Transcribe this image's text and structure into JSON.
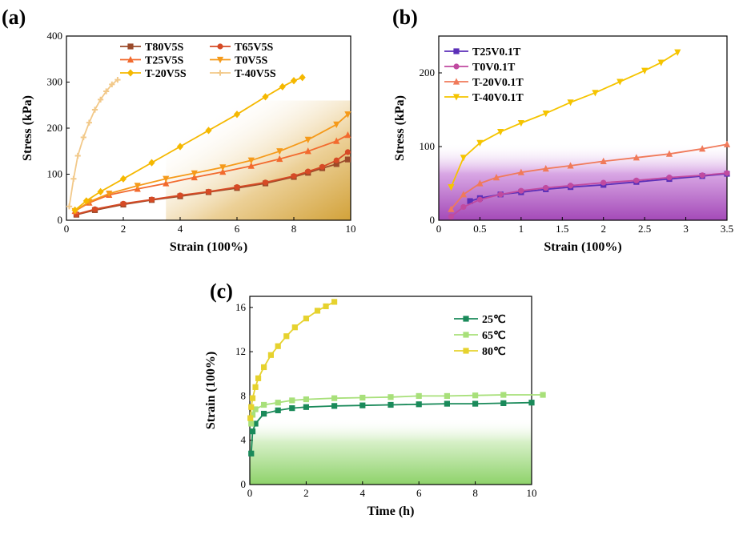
{
  "chart_data": [
    {
      "type": "line",
      "panel_label": "(a)",
      "xlabel": "Strain (100%)",
      "ylabel": "Stress (kPa)",
      "xlim": [
        0,
        10
      ],
      "ylim": [
        0,
        400
      ],
      "xticks": [
        0,
        2,
        4,
        6,
        8,
        10
      ],
      "yticks": [
        0,
        100,
        200,
        300,
        400
      ],
      "xtick_labels": [
        "0",
        "2",
        "4",
        "6",
        "8",
        "10"
      ],
      "ytick_labels": [
        "0",
        "100",
        "200",
        "300",
        "400"
      ],
      "legend_position": "top",
      "series": [
        {
          "name": "T80V5S",
          "color": "#9b4a2a",
          "marker": "square",
          "x": [
            0.35,
            1,
            2,
            3,
            4,
            5,
            6,
            7,
            8,
            8.5,
            9,
            9.5,
            9.9
          ],
          "y": [
            12,
            22,
            34,
            44,
            52,
            61,
            70,
            80,
            94,
            103,
            113,
            122,
            132
          ]
        },
        {
          "name": "T65V5S",
          "color": "#d64a25",
          "marker": "circle",
          "x": [
            0.35,
            1,
            2,
            3,
            4,
            5,
            6,
            7,
            8,
            8.5,
            9,
            9.5,
            9.9
          ],
          "y": [
            13,
            24,
            36,
            45,
            54,
            62,
            72,
            82,
            96,
            106,
            116,
            130,
            148
          ]
        },
        {
          "name": "T25V5S",
          "color": "#f26a2e",
          "marker": "triangle-up",
          "x": [
            0.3,
            0.8,
            1.5,
            2.5,
            3.5,
            4.5,
            5.5,
            6.5,
            7.5,
            8.5,
            9.5,
            9.9
          ],
          "y": [
            20,
            38,
            55,
            68,
            80,
            93,
            105,
            118,
            133,
            150,
            172,
            185
          ]
        },
        {
          "name": "T0V5S",
          "color": "#f59a1a",
          "marker": "triangle-down",
          "x": [
            0.3,
            0.8,
            1.5,
            2.5,
            3.5,
            4.5,
            5.5,
            6.5,
            7.5,
            8.5,
            9.5,
            9.9
          ],
          "y": [
            20,
            40,
            58,
            75,
            90,
            102,
            115,
            130,
            150,
            175,
            208,
            230
          ]
        },
        {
          "name": "T-20V5S",
          "color": "#f5b800",
          "marker": "diamond",
          "x": [
            0.3,
            0.7,
            1.2,
            2,
            3,
            4,
            5,
            6,
            7,
            7.6,
            8,
            8.3
          ],
          "y": [
            22,
            42,
            62,
            90,
            125,
            160,
            195,
            230,
            268,
            290,
            303,
            310
          ]
        },
        {
          "name": "T-40V5S",
          "color": "#f2c98a",
          "marker": "cross",
          "x": [
            0.1,
            0.25,
            0.4,
            0.6,
            0.8,
            1.0,
            1.2,
            1.4,
            1.6,
            1.8
          ],
          "y": [
            30,
            90,
            140,
            180,
            212,
            240,
            262,
            280,
            295,
            305
          ]
        }
      ]
    },
    {
      "type": "line",
      "panel_label": "(b)",
      "xlabel": "Strain (100%)",
      "ylabel": "Stress (kPa)",
      "xlim": [
        0,
        3.5
      ],
      "ylim": [
        0,
        250
      ],
      "xticks": [
        0,
        0.5,
        1,
        1.5,
        2,
        2.5,
        3,
        3.5
      ],
      "yticks": [
        0,
        100,
        200
      ],
      "xtick_labels": [
        "0",
        "0.5",
        "1",
        "1.5",
        "2",
        "2.5",
        "3",
        "3.5"
      ],
      "ytick_labels": [
        "0",
        "100",
        "200"
      ],
      "legend_position": "top-left",
      "series": [
        {
          "name": "T25V0.1T",
          "color": "#5b2fb8",
          "marker": "square",
          "x": [
            0.38,
            0.5,
            0.75,
            1.0,
            1.3,
            1.6,
            2.0,
            2.4,
            2.8,
            3.2,
            3.5
          ],
          "y": [
            26,
            30,
            35,
            38,
            42,
            45,
            48,
            52,
            56,
            60,
            63
          ]
        },
        {
          "name": "T0V0.1T",
          "color": "#c04aa0",
          "marker": "circle",
          "x": [
            0.15,
            0.3,
            0.5,
            0.75,
            1.0,
            1.3,
            1.6,
            2.0,
            2.4,
            2.8,
            3.2,
            3.5
          ],
          "y": [
            5,
            18,
            28,
            35,
            40,
            44,
            47,
            51,
            54,
            58,
            61,
            64
          ]
        },
        {
          "name": "T-20V0.1T",
          "color": "#f07a5a",
          "marker": "triangle-up",
          "x": [
            0.15,
            0.3,
            0.5,
            0.7,
            1.0,
            1.3,
            1.6,
            2.0,
            2.4,
            2.8,
            3.2,
            3.5
          ],
          "y": [
            15,
            35,
            50,
            58,
            65,
            70,
            74,
            80,
            85,
            90,
            97,
            103
          ]
        },
        {
          "name": "T-40V0.1T",
          "color": "#f5c400",
          "marker": "triangle-down",
          "x": [
            0.15,
            0.3,
            0.5,
            0.75,
            1.0,
            1.3,
            1.6,
            1.9,
            2.2,
            2.5,
            2.7,
            2.9
          ],
          "y": [
            45,
            85,
            105,
            120,
            132,
            145,
            160,
            173,
            188,
            203,
            214,
            228
          ]
        }
      ]
    },
    {
      "type": "line",
      "panel_label": "(c)",
      "xlabel": "Time (h)",
      "ylabel": "Strain (100%)",
      "xlim": [
        0,
        10
      ],
      "ylim": [
        0,
        17
      ],
      "xticks": [
        0,
        2,
        4,
        6,
        8,
        10
      ],
      "yticks": [
        0,
        4,
        8,
        12,
        16
      ],
      "xtick_labels": [
        "0",
        "2",
        "4",
        "6",
        "8",
        "10"
      ],
      "ytick_labels": [
        "0",
        "4",
        "8",
        "12",
        "16"
      ],
      "legend_position": "top-right",
      "series": [
        {
          "name": "25℃",
          "color": "#1a8a5a",
          "marker": "square",
          "x": [
            0.05,
            0.1,
            0.2,
            0.5,
            1,
            1.5,
            2,
            3,
            4,
            5,
            6,
            7,
            8,
            9,
            10
          ],
          "y": [
            2.8,
            4.8,
            5.5,
            6.4,
            6.7,
            6.9,
            7.0,
            7.1,
            7.15,
            7.2,
            7.25,
            7.3,
            7.3,
            7.35,
            7.4
          ]
        },
        {
          "name": "65℃",
          "color": "#a8e07a",
          "marker": "square",
          "x": [
            0.05,
            0.1,
            0.2,
            0.5,
            1,
            1.5,
            2,
            3,
            4,
            5,
            6,
            7,
            8,
            9,
            10.4
          ],
          "y": [
            5.5,
            6.3,
            6.8,
            7.2,
            7.4,
            7.6,
            7.7,
            7.8,
            7.85,
            7.9,
            8.0,
            8.0,
            8.05,
            8.1,
            8.1
          ]
        },
        {
          "name": "80℃",
          "color": "#e6d22e",
          "marker": "square",
          "x": [
            0.02,
            0.05,
            0.1,
            0.2,
            0.3,
            0.5,
            0.75,
            1.0,
            1.3,
            1.6,
            2.0,
            2.4,
            2.7,
            3.0
          ],
          "y": [
            6.0,
            7.0,
            7.8,
            8.8,
            9.6,
            10.6,
            11.7,
            12.5,
            13.4,
            14.2,
            15.0,
            15.7,
            16.1,
            16.5
          ]
        }
      ]
    }
  ]
}
